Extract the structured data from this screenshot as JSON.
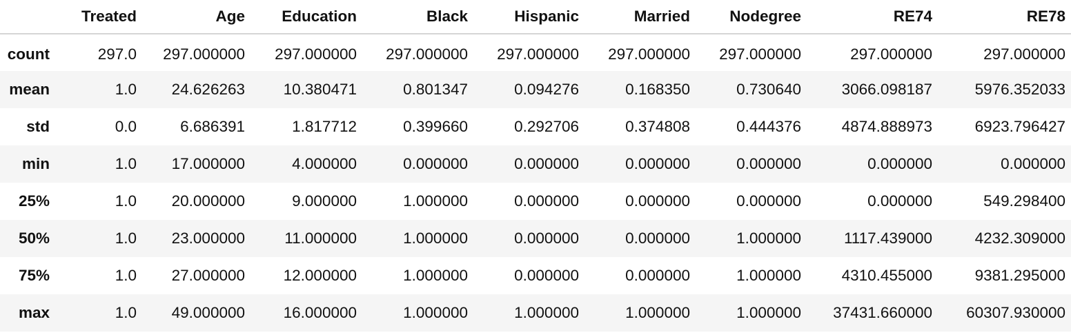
{
  "table": {
    "columns": [
      "",
      "Treated",
      "Age",
      "Education",
      "Black",
      "Hispanic",
      "Married",
      "Nodegree",
      "RE74",
      "RE78"
    ],
    "rows": [
      {
        "index": "count",
        "values": [
          "297.0",
          "297.000000",
          "297.000000",
          "297.000000",
          "297.000000",
          "297.000000",
          "297.000000",
          "297.000000",
          "297.000000"
        ]
      },
      {
        "index": "mean",
        "values": [
          "1.0",
          "24.626263",
          "10.380471",
          "0.801347",
          "0.094276",
          "0.168350",
          "0.730640",
          "3066.098187",
          "5976.352033"
        ]
      },
      {
        "index": "std",
        "values": [
          "0.0",
          "6.686391",
          "1.817712",
          "0.399660",
          "0.292706",
          "0.374808",
          "0.444376",
          "4874.888973",
          "6923.796427"
        ]
      },
      {
        "index": "min",
        "values": [
          "1.0",
          "17.000000",
          "4.000000",
          "0.000000",
          "0.000000",
          "0.000000",
          "0.000000",
          "0.000000",
          "0.000000"
        ]
      },
      {
        "index": "25%",
        "values": [
          "1.0",
          "20.000000",
          "9.000000",
          "1.000000",
          "0.000000",
          "0.000000",
          "0.000000",
          "0.000000",
          "549.298400"
        ]
      },
      {
        "index": "50%",
        "values": [
          "1.0",
          "23.000000",
          "11.000000",
          "1.000000",
          "0.000000",
          "0.000000",
          "1.000000",
          "1117.439000",
          "4232.309000"
        ]
      },
      {
        "index": "75%",
        "values": [
          "1.0",
          "27.000000",
          "12.000000",
          "1.000000",
          "0.000000",
          "0.000000",
          "1.000000",
          "4310.455000",
          "9381.295000"
        ]
      },
      {
        "index": "max",
        "values": [
          "1.0",
          "49.000000",
          "16.000000",
          "1.000000",
          "1.000000",
          "1.000000",
          "1.000000",
          "37431.660000",
          "60307.930000"
        ]
      }
    ]
  }
}
